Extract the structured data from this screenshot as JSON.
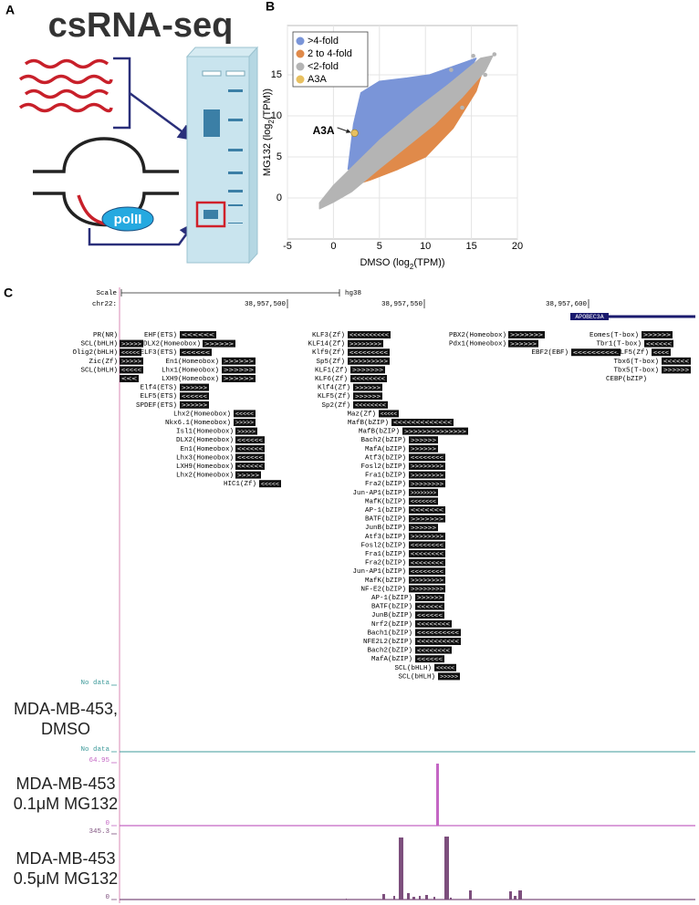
{
  "panel_a": {
    "label": "A",
    "title": "csRNA-seq",
    "pol_label": "polII"
  },
  "chart_data": {
    "type": "scatter",
    "panel_label": "B",
    "x_label": [
      "DMSO (log",
      "2",
      "(TPM))"
    ],
    "y_label": [
      "MG132 (log",
      "2",
      "(TPM))"
    ],
    "xlim": [
      -5,
      20
    ],
    "ylim": [
      -5,
      21
    ],
    "xticks": [
      -5,
      0,
      5,
      10,
      15,
      20
    ],
    "yticks": [
      0,
      5,
      10,
      15
    ],
    "grid": true,
    "legend": [
      {
        "name": ">4-fold",
        "color": "#7a95d8"
      },
      {
        "name": "2 to 4-fold",
        "color": "#e08a4a"
      },
      {
        "name": "<2-fold",
        "color": "#b4b4b4"
      },
      {
        "name": "A3A",
        "color": "#e8c060"
      }
    ],
    "highlight": {
      "x": [
        2.3
      ],
      "values": [
        7.9
      ]
    },
    "annotation": "A3A"
  },
  "panel_c": {
    "label": "C",
    "scale_label": "Scale",
    "assembly": "hg38",
    "chrom": "chr22:",
    "positions": [
      "38,957,500",
      "38,957,550",
      "38,957,600"
    ],
    "gene": "APOBEC3A",
    "motifs": [
      {
        "label": "PR(NR)"
      },
      {
        "label": "EHF(ETS)",
        "arrows": "<<<<<<"
      },
      {
        "label": "SCL(bHLH)",
        "arrows": ">>>>>"
      },
      {
        "label": "DLX2(Homeobox)",
        "arrows": ">>>>>>"
      },
      {
        "label": "Olig2(bHLH)",
        "arrows": "<<<<<"
      },
      {
        "label": "ELF3(ETS)",
        "arrows": "<<<<<<"
      },
      {
        "label": "Zic(Zf)",
        "arrows": ">>>>>"
      },
      {
        "label": "En1(Homeobox)",
        "arrows": ">>>>>>"
      },
      {
        "label": "SCL(bHLH)",
        "arrows": "<<<<<"
      },
      {
        "label": "Lhx1(Homeobox)",
        "arrows": ">>>>>>"
      },
      {
        "arrows": "<<<"
      },
      {
        "label": "LXH9(Homeobox)",
        "arrows": ">>>>>>"
      },
      {
        "label": "Elf4(ETS)",
        "arrows": ">>>>>>"
      },
      {
        "label": "ELF5(ETS)",
        "arrows": "<<<<<<"
      },
      {
        "label": "SPDEF(ETS)",
        "arrows": ">>>>>>"
      },
      {
        "label": "Lhx2(Homeobox)",
        "arrows": "<<<<<"
      },
      {
        "label": "Nkx6.1(Homeobox)",
        "arrows": ">>>>>"
      },
      {
        "label": "Isl1(Homeobox)",
        "arrows": ">>>>>"
      },
      {
        "label": "DLX2(Homeobox)",
        "arrows": "<<<<<<"
      },
      {
        "label": "En1(Homeobox)",
        "arrows": "<<<<<<"
      },
      {
        "label": "Lhx3(Homeobox)",
        "arrows": "<<<<<<"
      },
      {
        "label": "LXH9(Homeobox)",
        "arrows": "<<<<<<"
      },
      {
        "label": "Lhx2(Homeobox)",
        "arrows": ">>>>>"
      },
      {
        "label": "HIC1(Zf)",
        "arrows": "<<<<<"
      },
      {
        "label": "KLF3(Zf)",
        "arrows": "<<<<<<<<<<"
      },
      {
        "label": "KLF14(Zf)",
        "arrows": ">>>>>>>>"
      },
      {
        "label": "Klf9(Zf)",
        "arrows": "<<<<<<<<<"
      },
      {
        "label": "Sp5(Zf)",
        "arrows": ">>>>>>>>>"
      },
      {
        "label": "KLF1(Zf)",
        "arrows": ">>>>>>>"
      },
      {
        "label": "KLF6(Zf)",
        "arrows": "<<<<<<<<"
      },
      {
        "label": "Klf4(Zf)",
        "arrows": ">>>>>>"
      },
      {
        "label": "KLF5(Zf)",
        "arrows": ">>>>>>"
      },
      {
        "label": "Sp2(Zf)",
        "arrows": "<<<<<<<<"
      },
      {
        "label": "Maz(Zf)",
        "arrows": "<<<<<"
      },
      {
        "label": "MafB(bZIP)",
        "arrows": "<<<<<<<<<<<<<"
      },
      {
        "label": "MafB(bZIP)",
        "arrows": ">>>>>>>>>>>>>>"
      },
      {
        "label": "Bach2(bZIP)",
        "arrows": ">>>>>>"
      },
      {
        "label": "MafA(bZIP)",
        "arrows": ">>>>>>"
      },
      {
        "label": "Atf3(bZIP)",
        "arrows": "<<<<<<<<"
      },
      {
        "label": "Fosl2(bZIP)",
        "arrows": ">>>>>>>>"
      },
      {
        "label": "Fra1(bZIP)",
        "arrows": ">>>>>>>>"
      },
      {
        "label": "Fra2(bZIP)",
        "arrows": ">>>>>>>>"
      },
      {
        "label": "Jun-AP1(bZIP)",
        "arrows": ">>>>>>>>"
      },
      {
        "label": "MafK(bZIP)",
        "arrows": "<<<<<<<"
      },
      {
        "label": "AP-1(bZIP)",
        "arrows": "<<<<<<<"
      },
      {
        "label": "BATF(bZIP)",
        "arrows": ">>>>>>>"
      },
      {
        "label": "JunB(bZIP)",
        "arrows": ">>>>>>"
      },
      {
        "label": "Atf3(bZIP)",
        "arrows": ">>>>>>>>"
      },
      {
        "label": "Fosl2(bZIP)",
        "arrows": "<<<<<<<<"
      },
      {
        "label": "Fra1(bZIP)",
        "arrows": "<<<<<<<<"
      },
      {
        "label": "Fra2(bZIP)",
        "arrows": "<<<<<<<<"
      },
      {
        "label": "Jun-AP1(bZIP)",
        "arrows": "<<<<<<<<"
      },
      {
        "label": "MafK(bZIP)",
        "arrows": ">>>>>>>>"
      },
      {
        "label": "NF-E2(bZIP)",
        "arrows": ">>>>>>>>"
      },
      {
        "label": "AP-1(bZIP)",
        "arrows": ">>>>>>"
      },
      {
        "label": "BATF(bZIP)",
        "arrows": "<<<<<<"
      },
      {
        "label": "JunB(bZIP)",
        "arrows": "<<<<<<"
      },
      {
        "label": "Nrf2(bZIP)",
        "arrows": "<<<<<<<<"
      },
      {
        "label": "Bach1(bZIP)",
        "arrows": "<<<<<<<<<<"
      },
      {
        "label": "NFE2L2(bZIP)",
        "arrows": "<<<<<<<<<<"
      },
      {
        "label": "Bach2(bZIP)",
        "arrows": "<<<<<<<<"
      },
      {
        "label": "MafA(bZIP)",
        "arrows": "<<<<<<"
      },
      {
        "label": "SCL(bHLH)",
        "arrows": "<<<<<"
      },
      {
        "label": "SCL(bHLH)",
        "arrows": ">>>>>"
      },
      {
        "label": "PBX2(Homeobox)",
        "arrows": ">>>>>>>"
      },
      {
        "label": "Eomes(T-box)",
        "arrows": ">>>>>>"
      },
      {
        "label": "Pdx1(Homeobox)",
        "arrows": ">>>>>>"
      },
      {
        "label": "Tbr1(T-box)",
        "arrows": "<<<<<<"
      },
      {
        "label": "EBF2(EBF)",
        "arrows": "<<<<<<<<<<"
      },
      {
        "label": "KLF5(Zf)",
        "arrows": "<<<<"
      },
      {
        "label": "Tbx6(T-box)",
        "arrows": "<<<<<<"
      },
      {
        "label": "Tbx5(T-box)",
        "arrows": ">>>>>>"
      },
      {
        "label": "CEBP(bZIP)"
      }
    ],
    "no_data_labels": [
      "No data",
      "No data"
    ],
    "tracks": [
      {
        "lines": [
          "MDA-MB-453,",
          "DMSO"
        ]
      },
      {
        "lines": [
          "MDA-MB-453",
          "0.1μM MG132"
        ],
        "color": "#c466c4",
        "ylim": [
          0,
          64.95
        ],
        "values": [
          64
        ]
      },
      {
        "lines": [
          "MDA-MB-453",
          "0.5μM MG132"
        ],
        "color": "#7d4f7d",
        "ylim": [
          0,
          345.3
        ],
        "values": [
          5,
          29,
          19,
          326,
          34,
          14,
          19,
          24,
          14,
          331,
          10,
          48,
          43,
          19,
          48
        ]
      }
    ]
  }
}
